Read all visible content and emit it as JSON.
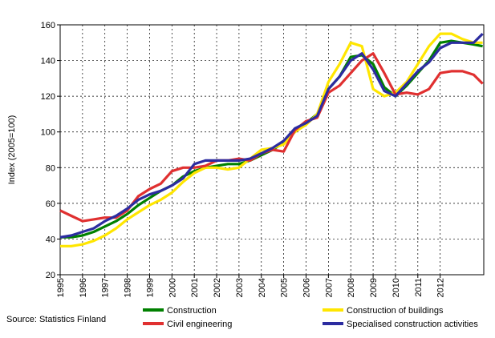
{
  "chart_data": {
    "type": "line",
    "y_label": "Index (2005=100)",
    "source": "Source: Statistics Finland",
    "xlim": [
      1995,
      2013.95
    ],
    "xticks": [
      1995,
      1996,
      1997,
      1998,
      1999,
      2000,
      2001,
      2002,
      2003,
      2004,
      2005,
      2006,
      2007,
      2008,
      2009,
      2010,
      2011,
      2012
    ],
    "ylim": [
      20,
      160
    ],
    "yticks": [
      20,
      40,
      60,
      80,
      100,
      120,
      140,
      160
    ],
    "grid": true,
    "legend": "bottom",
    "x": [
      1995,
      1995.5,
      1996,
      1996.5,
      1997,
      1997.5,
      1998,
      1998.5,
      1999,
      1999.5,
      2000,
      2000.5,
      2001,
      2001.5,
      2002,
      2002.5,
      2003,
      2003.5,
      2004,
      2004.5,
      2005,
      2005.5,
      2006,
      2006.5,
      2007,
      2007.5,
      2008,
      2008.5,
      2009,
      2009.5,
      2010,
      2010.5,
      2011,
      2011.5,
      2012,
      2012.5,
      2013,
      2013.5,
      2013.9
    ],
    "series": [
      {
        "name": "Construction",
        "color": "#008000",
        "values": [
          41,
          41,
          42,
          44,
          47,
          50,
          54,
          59,
          63,
          67,
          70,
          75,
          78,
          80,
          81,
          82,
          82,
          84,
          87,
          90,
          94,
          100,
          105,
          110,
          124,
          131,
          142,
          143,
          138,
          125,
          120,
          126,
          133,
          140,
          150,
          151,
          150,
          149,
          148
        ]
      },
      {
        "name": "Construction of buildings",
        "color": "#ffe600",
        "values": [
          36,
          36,
          37,
          39,
          42,
          46,
          51,
          55,
          59,
          62,
          66,
          72,
          77,
          80,
          80,
          79,
          80,
          85,
          90,
          91,
          93,
          100,
          104,
          110,
          128,
          138,
          150,
          148,
          124,
          120,
          122,
          128,
          138,
          148,
          155,
          155,
          152,
          150,
          150
        ]
      },
      {
        "name": "Civil engineering",
        "color": "#e03030",
        "values": [
          56,
          53,
          50,
          51,
          52,
          52,
          56,
          64,
          68,
          71,
          78,
          80,
          80,
          81,
          84,
          84,
          85,
          84,
          88,
          90,
          89,
          101,
          106,
          108,
          122,
          126,
          133,
          140,
          144,
          133,
          121,
          122,
          121,
          124,
          133,
          134,
          134,
          132,
          127
        ]
      },
      {
        "name": "Specialised construction activities",
        "color": "#2c2ca0",
        "values": [
          41,
          42,
          44,
          46,
          50,
          53,
          57,
          62,
          65,
          67,
          70,
          74,
          82,
          84,
          84,
          84,
          84,
          85,
          88,
          91,
          95,
          102,
          105,
          109,
          124,
          131,
          140,
          144,
          135,
          123,
          120,
          127,
          134,
          139,
          147,
          150,
          150,
          150,
          155
        ]
      }
    ]
  }
}
